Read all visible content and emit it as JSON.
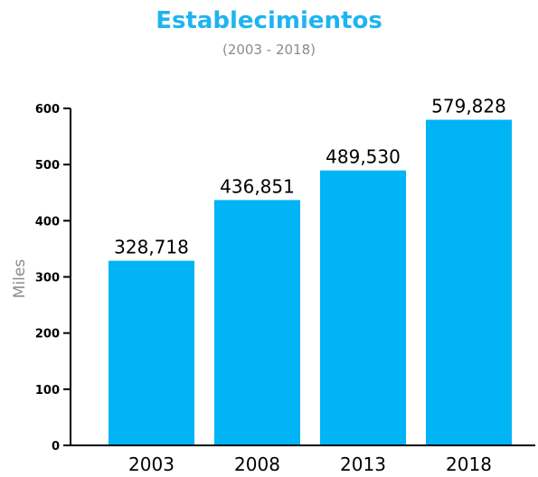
{
  "chart_data": {
    "type": "bar",
    "title": "Establecimientos",
    "subtitle": "(2003 - 2018)",
    "xlabel": "",
    "ylabel": "Miles",
    "categories": [
      "2003",
      "2008",
      "2013",
      "2018"
    ],
    "values": [
      328.718,
      436.851,
      489.53,
      579.828
    ],
    "value_labels": [
      "328,718",
      "436,851",
      "489,530",
      "579,828"
    ],
    "ylim": [
      0,
      600
    ],
    "yticks": [
      0,
      100,
      200,
      300,
      400,
      500,
      600
    ],
    "grid": false,
    "legend": "none",
    "colors": {
      "bar": "#00b4f5",
      "title": "#1fb4ef",
      "subtitle": "#8c8c8c",
      "ylabel": "#8c8c8c",
      "axis": "#000000",
      "text": "#000000"
    }
  }
}
